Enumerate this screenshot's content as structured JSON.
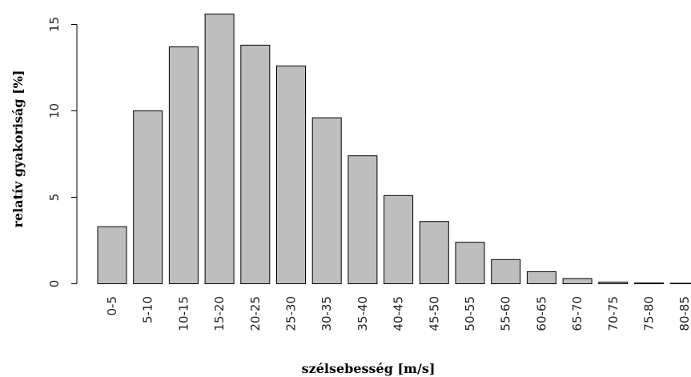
{
  "chart_data": {
    "type": "bar",
    "title": "",
    "xlabel": "szélsebesség [m/s]",
    "ylabel": "relatív gyakoriság [%]",
    "ylim": [
      0,
      15
    ],
    "yticks": [
      0,
      5,
      10,
      15
    ],
    "grid": false,
    "legend": "none",
    "bar_color": "#bebebe",
    "bar_border_color": "#000000",
    "categories": [
      "0-5",
      "5-10",
      "10-15",
      "15-20",
      "20-25",
      "25-30",
      "30-35",
      "35-40",
      "40-45",
      "45-50",
      "50-55",
      "55-60",
      "60-65",
      "65-70",
      "70-75",
      "75-80",
      "80-85"
    ],
    "values": [
      3.3,
      10.0,
      13.7,
      15.6,
      13.8,
      12.6,
      9.6,
      7.4,
      5.1,
      3.6,
      2.4,
      1.4,
      0.7,
      0.3,
      0.1,
      0.05,
      0.02
    ]
  }
}
